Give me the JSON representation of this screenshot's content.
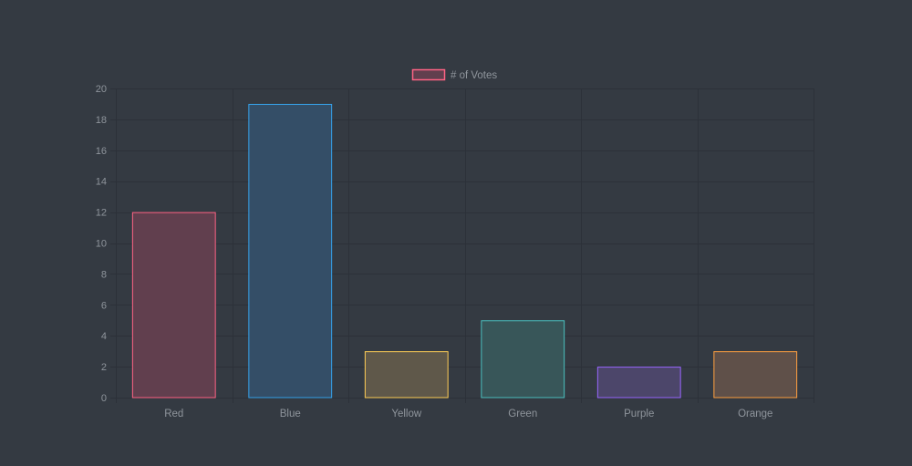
{
  "chart_data": {
    "type": "bar",
    "categories": [
      "Red",
      "Blue",
      "Yellow",
      "Green",
      "Purple",
      "Orange"
    ],
    "series": [
      {
        "name": "# of Votes",
        "values": [
          12,
          19,
          3,
          5,
          2,
          3
        ]
      }
    ],
    "ylim": [
      0,
      20
    ],
    "yticks": [
      "0",
      "2",
      "4",
      "6",
      "8",
      "10",
      "12",
      "14",
      "16",
      "18",
      "20"
    ],
    "grid": true,
    "legend_position": "top",
    "colors": {
      "border": [
        "#ff6384",
        "#36a2eb",
        "#ffce56",
        "#4bc0c0",
        "#9966ff",
        "#ff9f40"
      ],
      "fill": [
        "#613f4e",
        "#344e67",
        "#5f584a",
        "#385659",
        "#4c466a",
        "#5f5049"
      ],
      "background": "#343a42",
      "grid": "#2c3139",
      "text": "#8f959c"
    }
  }
}
